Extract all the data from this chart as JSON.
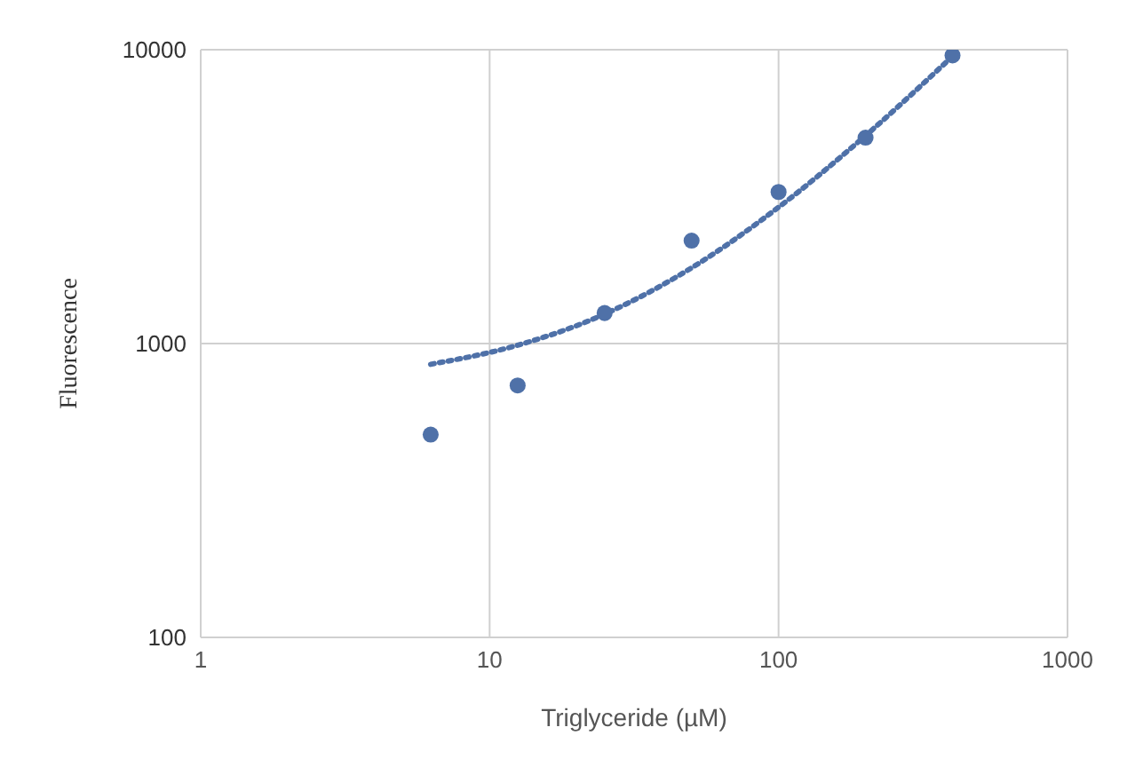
{
  "chart_data": {
    "type": "scatter",
    "xlabel": "Triglyceride (µM)",
    "ylabel": "Fluorescence",
    "log": "xy",
    "grid": true,
    "legend": false,
    "xlim": [
      1,
      1000
    ],
    "xticks": [
      1,
      10,
      100,
      1000
    ],
    "ylim": [
      100,
      10000
    ],
    "yticks": [
      100,
      1000,
      10000
    ],
    "series": [
      {
        "color": "#4f71a8",
        "marker": "circle",
        "x": [
          6.25,
          12.5,
          25,
          50,
          100,
          200,
          400
        ],
        "values": [
          490,
          720,
          1270,
          2240,
          3280,
          5020,
          9560
        ]
      },
      {
        "type": "line",
        "color": "#4f71a8",
        "marker": "none",
        "line_style": "dotted",
        "x": [
          6.25,
          12.5,
          25,
          50,
          100,
          200,
          400
        ],
        "values": [
          850,
          987,
          1260,
          1810,
          2910,
          5100,
          9500
        ]
      }
    ]
  }
}
